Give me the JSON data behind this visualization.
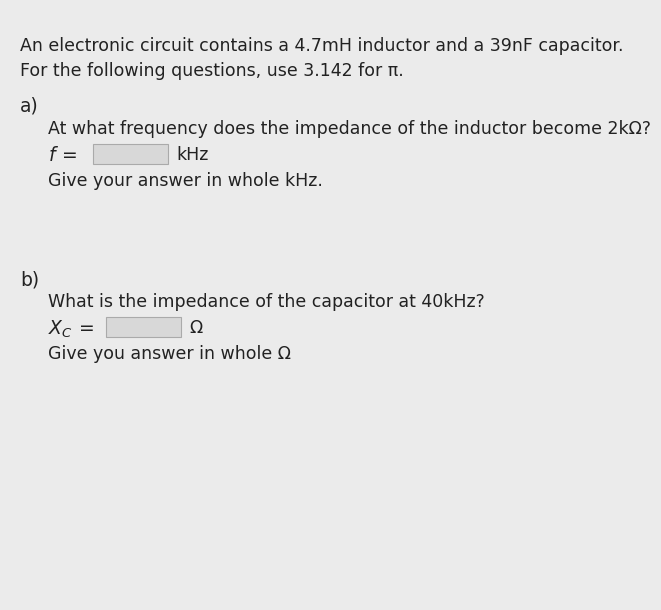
{
  "background_color": "#ebebeb",
  "title_line1": "An electronic circuit contains a 4.7mH inductor and a 39nF capacitor.",
  "title_line2": "For the following questions, use 3.142 for π.",
  "section_a_label": "a)",
  "section_a_question": "At what frequency does the impedance of the inductor become 2kΩ?",
  "section_a_unit": "kHz",
  "section_a_hint": "Give your answer in whole kHz.",
  "section_b_label": "b)",
  "section_b_question": "What is the impedance of the capacitor at 40kHz?",
  "section_b_unit": "Ω",
  "section_b_hint": "Give you answer in whole Ω",
  "text_color": "#222222",
  "box_fill": "#d8d8d8",
  "box_edge": "#aaaaaa",
  "font_size_main": 12.5,
  "font_size_label": 13.5
}
